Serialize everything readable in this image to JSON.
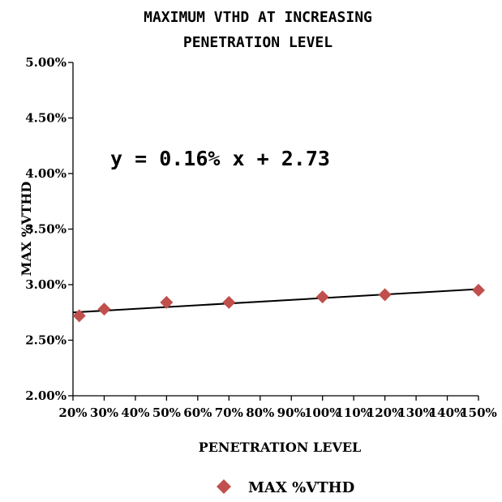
{
  "chart_data": {
    "type": "scatter",
    "title_lines": [
      "MAXIMUM  VTHD AT INCREASING",
      "PENETRATION LEVEL"
    ],
    "xlabel": "PENETRATION LEVEL",
    "ylabel": "MAX %VTHD",
    "x_ticks": [
      "20%",
      "30%",
      "40%",
      "50%",
      "60%",
      "70%",
      "80%",
      "90%",
      "100%",
      "110%",
      "120%",
      "130%",
      "140%",
      "150%"
    ],
    "y_ticks": [
      "2.00%",
      "2.50%",
      "3.00%",
      "3.50%",
      "4.00%",
      "4.50%",
      "5.00%"
    ],
    "xlim": [
      20,
      150
    ],
    "ylim": [
      2.0,
      5.0
    ],
    "series": [
      {
        "name": "MAX %VTHD",
        "color": "#C0504D",
        "marker": "diamond",
        "x": [
          22,
          30,
          50,
          70,
          100,
          120,
          150
        ],
        "y": [
          2.72,
          2.78,
          2.84,
          2.84,
          2.89,
          2.91,
          2.95
        ]
      }
    ],
    "trendline": {
      "equation": "y = 0.16% x + 2.73",
      "color": "#000000",
      "points": [
        [
          20,
          2.75
        ],
        [
          150,
          2.96
        ]
      ]
    },
    "legend": {
      "position": "bottom",
      "label": "MAX %VTHD"
    }
  }
}
